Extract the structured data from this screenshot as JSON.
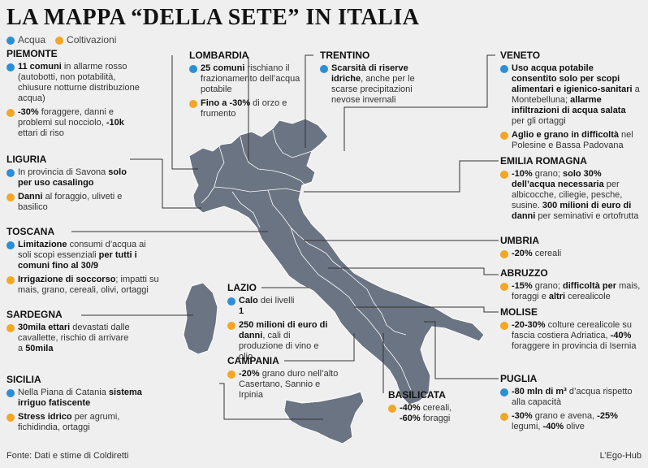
{
  "title": "LA MAPPA “DELLA SETE” IN ITALIA",
  "legend": {
    "acqua": "Acqua",
    "coltivazioni": "Coltivazioni"
  },
  "colors": {
    "acqua": "#2a8fd6",
    "coltivazioni": "#f5a623",
    "land": "#6b7483"
  },
  "regions": {
    "piemonte": {
      "name": "PIEMONTE",
      "acqua_html": "<b>11 comuni</b> in allarme rosso (autobotti, non potabilità, chiusure notturne distribuzione acqua)",
      "colt_html": "<b>-30%</b> foraggere, danni e problemi sul nocciolo, <b>-10k</b> ettari di riso"
    },
    "liguria": {
      "name": "LIGURIA",
      "acqua_html": "In provincia di Savona <b>solo per uso casalingo</b>",
      "colt_html": "<b>Danni</b> al foraggio, uliveti e basilico"
    },
    "toscana": {
      "name": "TOSCANA",
      "acqua_html": "<b>Limitazione</b> consumi d’acqua ai soli scopi essenziali <b>per tutti i comuni fino al 30/9</b>",
      "colt_html": "<b>Irrigazione di soccorso</b>; impatti su mais, grano, cereali, olivi, ortaggi"
    },
    "sardegna": {
      "name": "SARDEGNA",
      "colt_html": "<b>30mila ettari</b> devastati dalle cavallette, rischio di arrivare a <b>50mila</b>"
    },
    "sicilia": {
      "name": "SICILIA",
      "acqua_html": "Nella Piana di Catania <b>sistema irriguo fatiscente</b>",
      "colt_html": "<b>Stress idrico</b> per agrumi, fichidindia, ortaggi"
    },
    "lombardia": {
      "name": "LOMBARDIA",
      "acqua_html": "<b>25 comuni</b> rischiano il frazionamento dell’acqua potabile",
      "colt_html": "<b>Fino a -30%</b> di orzo e frumento"
    },
    "trentino": {
      "name": "TRENTINO",
      "acqua_html": "<b>Scarsità di riserve idriche</b>, anche per le scarse precipitazioni nevose invernali"
    },
    "lazio": {
      "name": "LAZIO",
      "acqua_html": "<b>Calo</b> dei livelli",
      "acqua_html2": "<b>1</b>",
      "colt_html": "<b>250 milioni di euro di danni</b>, cali di produzione di vino e olio"
    },
    "campania": {
      "name": "CAMPANIA",
      "colt_html": "<b>-20%</b> grano duro nell’alto Casertano, Sannio e Irpinia"
    },
    "basilicata": {
      "name": "BASILICATA",
      "colt_html": "<b>-40%</b> cereali, <b>-60%</b> foraggi"
    },
    "veneto": {
      "name": "VENETO",
      "acqua_html": "<b>Uso acqua potabile consentito solo per scopi alimentari e igienico-sanitari</b> a Montebelluna; <b>allarme infiltrazioni di acqua salata</b> per gli ortaggi",
      "colt_html": "<b>Aglio e grano in difficoltà</b> nel Polesine e Bassa Padovana"
    },
    "emilia": {
      "name": "EMILIA ROMAGNA",
      "colt_html": "<b>-10%</b> grano; <b>solo 30% dell’acqua necessaria</b> per albicocche, ciliegie, pesche, susine. <b>300 milioni di euro di danni</b> per seminativi e ortofrutta"
    },
    "umbria": {
      "name": "UMBRIA",
      "colt_html": "<b>-20%</b> cereali"
    },
    "abruzzo": {
      "name": "ABRUZZO",
      "colt_html": "<b>-15%</b> grano; <b>difficoltà per</b> mais, foraggi e <b>altri</b> cerealicole"
    },
    "molise": {
      "name": "MOLISE",
      "colt_html": "<b>-20-30%</b> colture cerealicole su fascia costiera Adriatica, <b>-40%</b> foraggere in provincia di Isernia"
    },
    "puglia": {
      "name": "PUGLIA",
      "acqua_html": "<b>-80 mln di m³</b> d’acqua rispetto alla capacità",
      "colt_html": "<b>-30%</b> grano e avena, <b>-25%</b> legumi, <b>-40%</b> olive"
    }
  },
  "source": "Fonte: Dati e stime di Coldiretti",
  "credit": "L’Ego-Hub"
}
